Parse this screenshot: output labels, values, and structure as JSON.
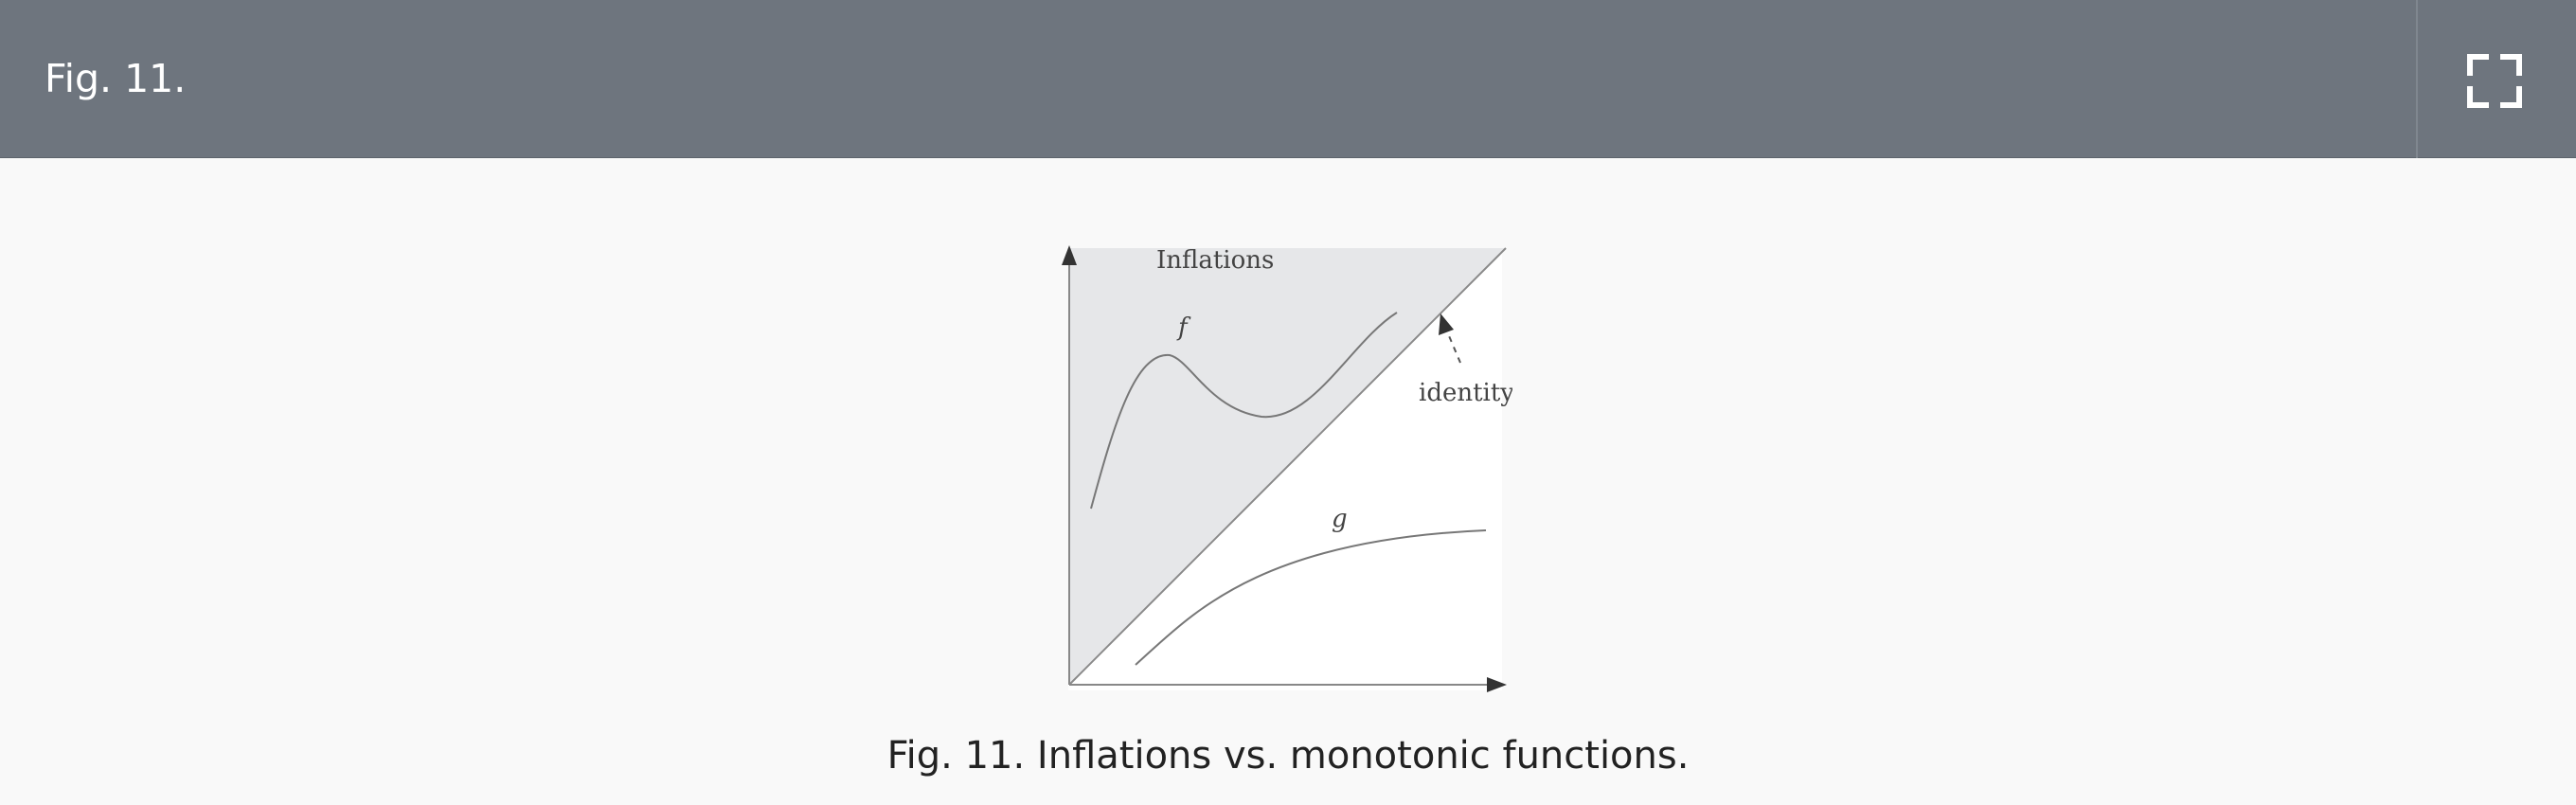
{
  "header": {
    "title": "Fig. 11.",
    "fullscreen_icon": "expand-icon"
  },
  "figure": {
    "region_label": "Inflations",
    "curve_f_label": "f",
    "curve_g_label": "g",
    "identity_label": "identity",
    "colors": {
      "shaded_region": "#e6e7e9",
      "plot_background": "#ffffff",
      "curves": "#777777",
      "axes": "#333333"
    }
  },
  "caption": {
    "text": "Fig. 11. Inflations vs. monotonic functions."
  }
}
